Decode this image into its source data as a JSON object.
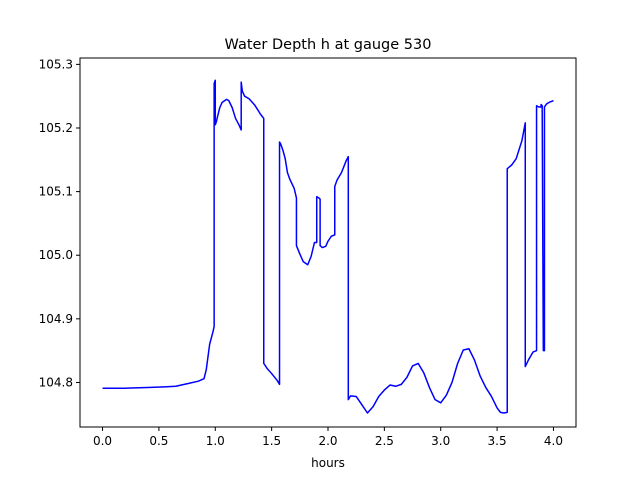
{
  "chart_data": {
    "type": "line",
    "title": "Water Depth h at gauge 530",
    "xlabel": "hours",
    "ylabel": "",
    "xlim": [
      -0.2,
      4.2
    ],
    "ylim": [
      104.73,
      105.31
    ],
    "xticks": [
      0.0,
      0.5,
      1.0,
      1.5,
      2.0,
      2.5,
      3.0,
      3.5,
      4.0
    ],
    "xtick_labels": [
      "0.0",
      "0.5",
      "1.0",
      "1.5",
      "2.0",
      "2.5",
      "3.0",
      "3.5",
      "4.0"
    ],
    "yticks": [
      104.8,
      104.9,
      105.0,
      105.1,
      105.2,
      105.3
    ],
    "ytick_labels": [
      "104.8",
      "104.9",
      "105.0",
      "105.1",
      "105.2",
      "105.3"
    ],
    "grid": false,
    "series": [
      {
        "color": "#0000ff",
        "x": [
          0.0,
          0.2,
          0.4,
          0.55,
          0.65,
          0.75,
          0.85,
          0.9,
          0.92,
          0.95,
          0.98,
          0.99,
          0.99,
          1.0,
          1.0,
          1.01,
          1.02,
          1.04,
          1.06,
          1.1,
          1.12,
          1.15,
          1.18,
          1.21,
          1.23,
          1.23,
          1.24,
          1.26,
          1.3,
          1.35,
          1.4,
          1.43,
          1.43,
          1.46,
          1.5,
          1.55,
          1.57,
          1.57,
          1.58,
          1.6,
          1.62,
          1.64,
          1.66,
          1.7,
          1.72,
          1.72,
          1.75,
          1.78,
          1.82,
          1.85,
          1.88,
          1.9,
          1.9,
          1.92,
          1.93,
          1.93,
          1.95,
          1.98,
          2.0,
          2.03,
          2.06,
          2.06,
          2.08,
          2.12,
          2.16,
          2.18,
          2.18,
          2.2,
          2.25,
          2.3,
          2.35,
          2.4,
          2.45,
          2.5,
          2.55,
          2.6,
          2.65,
          2.7,
          2.75,
          2.8,
          2.85,
          2.9,
          2.95,
          3.0,
          3.05,
          3.1,
          3.15,
          3.2,
          3.25,
          3.3,
          3.35,
          3.4,
          3.45,
          3.5,
          3.53,
          3.56,
          3.59,
          3.59,
          3.63,
          3.67,
          3.72,
          3.75,
          3.75,
          3.78,
          3.82,
          3.85,
          3.85,
          3.87,
          3.89,
          3.89,
          3.9,
          3.91,
          3.91,
          3.92,
          3.92,
          3.94,
          3.97,
          4.0
        ],
        "y": [
          104.791,
          104.791,
          104.792,
          104.793,
          104.794,
          104.798,
          104.802,
          104.806,
          104.82,
          104.86,
          104.88,
          104.888,
          105.27,
          105.275,
          105.205,
          105.21,
          105.218,
          105.232,
          105.24,
          105.245,
          105.243,
          105.232,
          105.215,
          105.205,
          105.197,
          105.272,
          105.258,
          105.25,
          105.246,
          105.236,
          105.222,
          105.215,
          104.83,
          104.822,
          104.814,
          104.803,
          104.797,
          105.178,
          105.175,
          105.165,
          105.152,
          105.13,
          105.12,
          105.105,
          105.09,
          105.015,
          105.002,
          104.99,
          104.985,
          104.998,
          105.02,
          105.02,
          105.092,
          105.09,
          105.088,
          105.015,
          105.012,
          105.014,
          105.022,
          105.03,
          105.032,
          105.108,
          105.118,
          105.13,
          105.148,
          105.155,
          104.773,
          104.779,
          104.778,
          104.765,
          104.752,
          104.762,
          104.778,
          104.788,
          104.796,
          104.794,
          104.797,
          104.808,
          104.826,
          104.83,
          104.815,
          104.792,
          104.773,
          104.768,
          104.78,
          104.8,
          104.83,
          104.851,
          104.853,
          104.835,
          104.81,
          104.792,
          104.778,
          104.76,
          104.753,
          104.752,
          104.753,
          105.136,
          105.142,
          105.152,
          105.18,
          105.208,
          104.825,
          104.836,
          104.848,
          104.85,
          105.235,
          105.233,
          105.233,
          105.237,
          105.235,
          104.85,
          104.85,
          104.85,
          105.233,
          105.238,
          105.241,
          105.243
        ]
      }
    ]
  }
}
